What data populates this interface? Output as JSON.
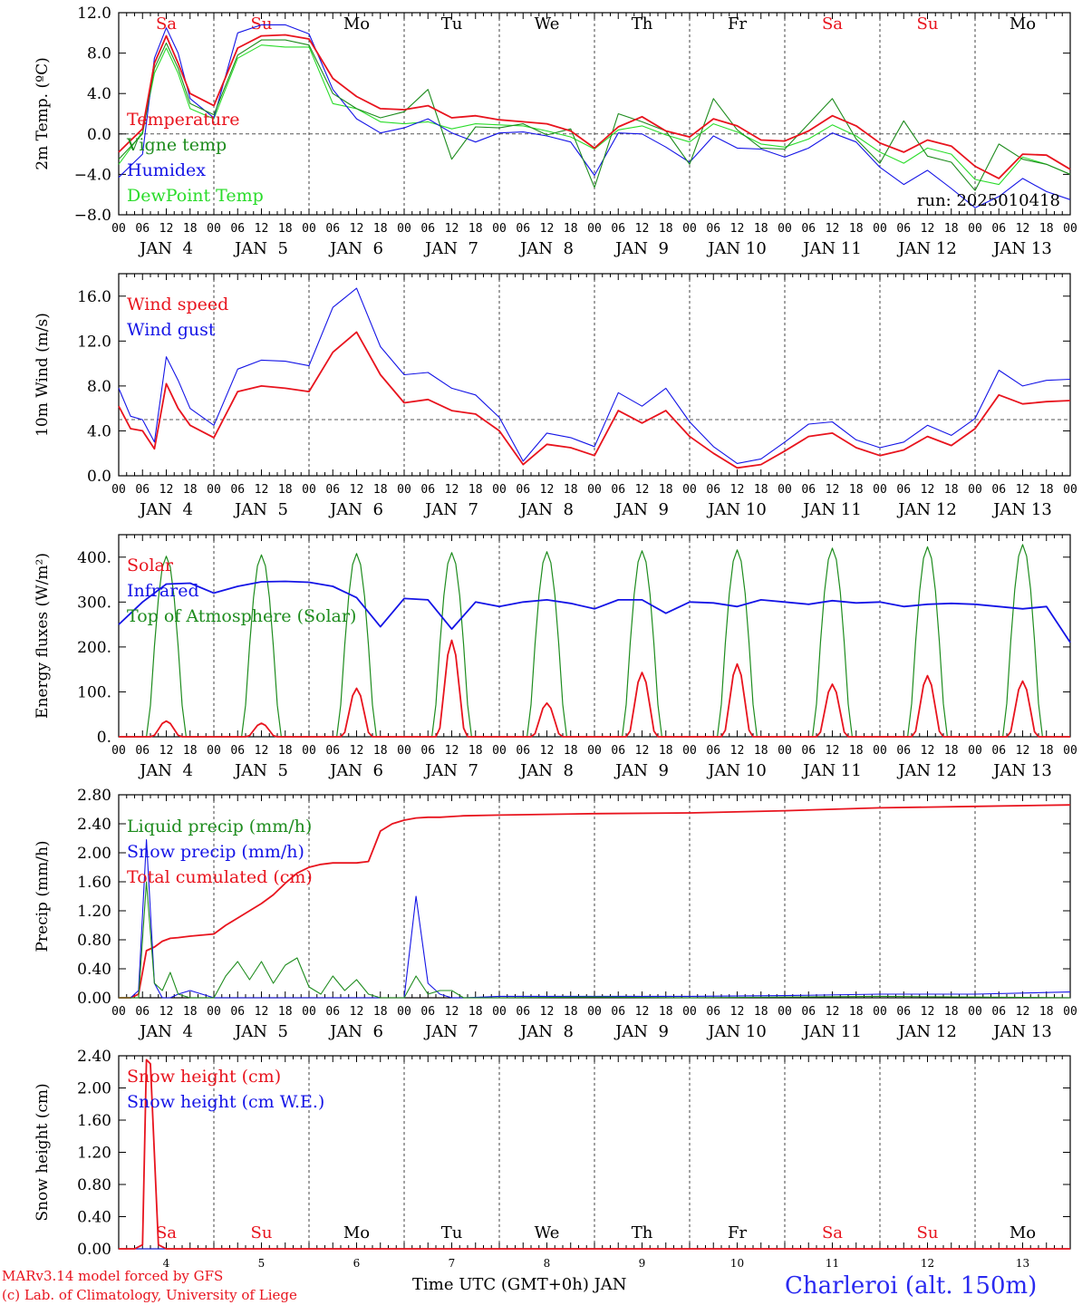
{
  "colors": {
    "red": "#e8141e",
    "green": "#1e8c1e",
    "blue": "#1414e6",
    "lightgreen": "#2adc2a",
    "black": "#000000",
    "location": "#2a2af0"
  },
  "footer": {
    "credit_line1": "MARv3.14 model forced by GFS",
    "credit_line2": "(c) Lab. of Climatology, University of Liege",
    "xlabel": "Time UTC (GMT+0h) JAN",
    "location": "Charleroi (alt. 150m)"
  },
  "time_axis": {
    "hour_ticks": [
      "00",
      "06",
      "12",
      "18"
    ],
    "day_labels": [
      "JAN  4",
      "JAN  5",
      "JAN  6",
      "JAN  7",
      "JAN  8",
      "JAN  9",
      "JAN 10",
      "JAN 11",
      "JAN 12",
      "JAN 13"
    ],
    "weekday_labels": [
      "Sa",
      "Su",
      "Mo",
      "Tu",
      "We",
      "Th",
      "Fr",
      "Sa",
      "Su",
      "Mo"
    ],
    "weekend_flags": [
      true,
      true,
      false,
      false,
      false,
      false,
      false,
      true,
      true,
      false
    ],
    "bottom_day_numbers": [
      "4",
      "5",
      "6",
      "7",
      "8",
      "9",
      "10",
      "11",
      "12",
      "13"
    ],
    "start_hour": 0,
    "end_hour": 240,
    "day_separator_hour": 24
  },
  "chart_data": [
    {
      "type": "line",
      "title": "",
      "ylabel": "2m Temp. (ºC)",
      "ylim": [
        -8,
        12
      ],
      "yticks": [
        "12.0",
        "8.0",
        "4.0",
        "0.0",
        "−4.0",
        "−8.0"
      ],
      "ytick_values": [
        12,
        8,
        4,
        0,
        -4,
        -8
      ],
      "reference_line": 0,
      "show_weekday_top": true,
      "annotation": "run: 2025010418",
      "x_hours": [
        0,
        6,
        9,
        12,
        15,
        18,
        24,
        30,
        36,
        42,
        48,
        54,
        60,
        66,
        72,
        78,
        84,
        90,
        96,
        102,
        108,
        114,
        120,
        126,
        132,
        138,
        144,
        150,
        156,
        162,
        168,
        174,
        180,
        186,
        192,
        198,
        204,
        210,
        216,
        222,
        228,
        234,
        240
      ],
      "series": [
        {
          "name": "Temperature",
          "color_key": "red",
          "values": [
            -1.8,
            0.5,
            7.0,
            9.7,
            7.0,
            4.0,
            2.8,
            8.5,
            9.7,
            9.8,
            9.4,
            5.5,
            3.7,
            2.5,
            2.4,
            2.8,
            1.6,
            1.8,
            1.4,
            1.2,
            1.0,
            0.3,
            -1.4,
            0.7,
            1.7,
            0.3,
            -0.3,
            1.5,
            0.8,
            -0.6,
            -0.7,
            0.3,
            1.8,
            0.8,
            -0.9,
            -1.8,
            -0.6,
            -1.2,
            -3.2,
            -4.4,
            -2.0,
            -2.1,
            -3.5
          ]
        },
        {
          "name": "Vigne temp",
          "color_key": "green",
          "values": [
            -2.5,
            0.0,
            6.5,
            9.0,
            6.5,
            3.0,
            1.9,
            7.8,
            9.3,
            9.3,
            8.8,
            4.0,
            2.5,
            1.6,
            2.2,
            4.4,
            -2.5,
            0.7,
            0.6,
            1.0,
            -0.1,
            0.5,
            -5.3,
            2.0,
            1.2,
            0.3,
            -3.0,
            3.5,
            0.4,
            -1.4,
            -1.5,
            1.0,
            3.5,
            -0.5,
            -2.9,
            1.3,
            -2.2,
            -2.8,
            -5.6,
            -1.0,
            -2.5,
            -3.0,
            -4.0
          ]
        },
        {
          "name": "Humidex",
          "color_key": "blue",
          "values": [
            -4.3,
            -2.0,
            7.5,
            10.5,
            8.0,
            3.5,
            1.6,
            10.0,
            10.8,
            10.8,
            9.9,
            4.4,
            1.5,
            0.1,
            0.6,
            1.5,
            0.1,
            -0.8,
            0.1,
            0.2,
            -0.2,
            -0.8,
            -4.1,
            0.1,
            0.0,
            -1.3,
            -2.8,
            -0.2,
            -1.4,
            -1.5,
            -2.3,
            -1.4,
            0.1,
            -0.8,
            -3.3,
            -5.0,
            -3.6,
            -5.4,
            -7.3,
            -6.2,
            -4.4,
            -5.7,
            -6.5
          ]
        },
        {
          "name": "DewPoint Temp",
          "color_key": "lightgreen",
          "values": [
            -3.0,
            0.2,
            6.0,
            8.5,
            6.0,
            2.5,
            1.5,
            7.5,
            8.8,
            8.6,
            8.6,
            3.0,
            2.5,
            1.2,
            1.0,
            1.2,
            0.5,
            1.0,
            0.9,
            0.8,
            0.3,
            -0.3,
            -1.5,
            0.4,
            0.8,
            -0.1,
            -0.8,
            1.0,
            0.2,
            -1.0,
            -1.3,
            -0.5,
            0.9,
            -0.2,
            -1.8,
            -2.9,
            -1.4,
            -2.0,
            -4.5,
            -5.0,
            -2.3,
            -3.0,
            -4.0
          ]
        }
      ]
    },
    {
      "type": "line",
      "title": "",
      "ylabel": "10m Wind (m/s)",
      "ylim": [
        0,
        18
      ],
      "yticks": [
        "16.0",
        "12.0",
        "8.0",
        "4.0",
        "0.0"
      ],
      "ytick_values": [
        16,
        12,
        8,
        4,
        0
      ],
      "reference_line": 5,
      "x_hours": [
        0,
        3,
        6,
        9,
        12,
        15,
        18,
        24,
        30,
        36,
        42,
        48,
        54,
        60,
        66,
        72,
        78,
        84,
        90,
        96,
        102,
        108,
        114,
        120,
        126,
        132,
        138,
        144,
        150,
        156,
        162,
        168,
        174,
        180,
        186,
        192,
        198,
        204,
        210,
        216,
        222,
        228,
        234,
        240
      ],
      "series": [
        {
          "name": "Wind speed",
          "color_key": "red",
          "values": [
            6.2,
            4.2,
            4.0,
            2.4,
            8.2,
            6.0,
            4.5,
            3.4,
            7.5,
            8.0,
            7.8,
            7.5,
            11.0,
            12.8,
            9.0,
            6.5,
            6.8,
            5.8,
            5.5,
            4.0,
            1.0,
            2.8,
            2.5,
            1.8,
            5.8,
            4.7,
            5.8,
            3.5,
            2.0,
            0.7,
            1.0,
            2.2,
            3.5,
            3.8,
            2.5,
            1.8,
            2.3,
            3.5,
            2.7,
            4.2,
            7.2,
            6.4,
            6.6,
            6.7
          ]
        },
        {
          "name": "Wind gust",
          "color_key": "blue",
          "values": [
            7.8,
            5.3,
            5.0,
            3.0,
            10.6,
            8.5,
            6.0,
            4.5,
            9.5,
            10.3,
            10.2,
            9.8,
            15.0,
            16.7,
            11.5,
            9.0,
            9.2,
            7.8,
            7.2,
            5.2,
            1.3,
            3.8,
            3.4,
            2.6,
            7.4,
            6.2,
            7.8,
            4.8,
            2.6,
            1.1,
            1.5,
            3.0,
            4.6,
            4.8,
            3.2,
            2.5,
            3.0,
            4.5,
            3.6,
            5.1,
            9.4,
            8.0,
            8.5,
            8.6
          ]
        }
      ]
    },
    {
      "type": "line",
      "title": "",
      "ylabel": "Energy fluxes (W/m²)",
      "ylim": [
        0,
        450
      ],
      "yticks": [
        "400.",
        "300.",
        "200.",
        "100.",
        "0."
      ],
      "ytick_values": [
        400,
        300,
        200,
        100,
        0
      ],
      "solar_noon_peaks": {
        "solar": [
          35,
          30,
          108,
          215,
          75,
          143,
          162,
          117,
          136,
          124
        ],
        "toa": [
          402,
          405,
          408,
          410,
          412,
          414,
          416,
          420,
          423,
          428
        ]
      },
      "x_hours": [
        0,
        6,
        12,
        18,
        24,
        30,
        36,
        42,
        48,
        54,
        60,
        66,
        72,
        78,
        84,
        90,
        96,
        102,
        108,
        114,
        120,
        126,
        132,
        138,
        144,
        150,
        156,
        162,
        168,
        174,
        180,
        186,
        192,
        198,
        204,
        210,
        216,
        222,
        228,
        234,
        240
      ],
      "series": [
        {
          "name": "Solar",
          "color_key": "red",
          "values": []
        },
        {
          "name": "Infrared",
          "color_key": "blue",
          "values": [
            250,
            300,
            340,
            342,
            320,
            335,
            345,
            346,
            344,
            335,
            310,
            245,
            308,
            305,
            240,
            300,
            290,
            300,
            305,
            297,
            285,
            305,
            305,
            275,
            300,
            298,
            290,
            305,
            300,
            295,
            303,
            298,
            300,
            290,
            295,
            297,
            295,
            290,
            285,
            290,
            210
          ]
        },
        {
          "name": "Top of Atmosphere (Solar)",
          "color_key": "green",
          "values": []
        }
      ]
    },
    {
      "type": "line",
      "title": "",
      "ylabel": "Precip (mm/h)",
      "ylim": [
        0,
        2.8
      ],
      "yticks": [
        "2.80",
        "2.40",
        "2.00",
        "1.60",
        "1.20",
        "0.80",
        "0.40",
        "0.00"
      ],
      "ytick_values": [
        2.8,
        2.4,
        2.0,
        1.6,
        1.2,
        0.8,
        0.4,
        0.0
      ],
      "x_hours": [
        0,
        3,
        5,
        7,
        9,
        11,
        13,
        15,
        18,
        24,
        27,
        30,
        33,
        36,
        39,
        42,
        45,
        48,
        51,
        54,
        57,
        60,
        63,
        66,
        69,
        72,
        75,
        78,
        81,
        84,
        87,
        96,
        120,
        144,
        168,
        192,
        216,
        240
      ],
      "series": [
        {
          "name": "Liquid precip (mm/h)",
          "color_key": "green",
          "values": [
            0.0,
            0.0,
            0.0,
            1.6,
            0.2,
            0.1,
            0.35,
            0.05,
            0.0,
            0.0,
            0.3,
            0.5,
            0.25,
            0.5,
            0.2,
            0.45,
            0.55,
            0.15,
            0.05,
            0.3,
            0.1,
            0.25,
            0.05,
            0.0,
            0.0,
            0.0,
            0.3,
            0.05,
            0.1,
            0.1,
            0.0,
            0.0,
            0.01,
            0.0,
            0.01,
            0.02,
            0.01,
            0.0
          ]
        },
        {
          "name": "Snow precip (mm/h)",
          "color_key": "blue",
          "values": [
            0.0,
            0.0,
            0.1,
            2.18,
            0.2,
            0.0,
            0.0,
            0.05,
            0.1,
            0.0,
            0.0,
            0.0,
            0.0,
            0.0,
            0.0,
            0.0,
            0.0,
            0.0,
            0.0,
            0.0,
            0.0,
            0.0,
            0.0,
            0.0,
            0.0,
            0.0,
            1.4,
            0.2,
            0.05,
            0.0,
            0.0,
            0.02,
            0.02,
            0.02,
            0.03,
            0.05,
            0.05,
            0.08
          ]
        },
        {
          "name": "Total cumulated (cm)",
          "color_key": "red",
          "values": [
            0.0,
            0.0,
            0.05,
            0.65,
            0.7,
            0.78,
            0.82,
            0.83,
            0.85,
            0.88,
            1.0,
            1.1,
            1.2,
            1.3,
            1.42,
            1.58,
            1.72,
            1.8,
            1.84,
            1.86,
            1.86,
            1.86,
            1.88,
            2.3,
            2.4,
            2.45,
            2.48,
            2.49,
            2.49,
            2.5,
            2.51,
            2.52,
            2.54,
            2.55,
            2.58,
            2.62,
            2.64,
            2.66
          ]
        }
      ]
    },
    {
      "type": "line",
      "title": "",
      "ylabel": "Snow height (cm)",
      "ylim": [
        0,
        2.4
      ],
      "yticks": [
        "2.40",
        "2.00",
        "1.60",
        "1.20",
        "0.80",
        "0.40",
        "0.00"
      ],
      "ytick_values": [
        2.4,
        2.0,
        1.6,
        1.2,
        0.8,
        0.4,
        0.0
      ],
      "show_weekday_bottom": true,
      "x_hours": [
        0,
        4,
        6,
        7,
        8,
        10,
        12,
        240
      ],
      "series": [
        {
          "name": "Snow height (cm)",
          "color_key": "red",
          "values": [
            0.0,
            0.0,
            0.05,
            2.35,
            2.3,
            0.05,
            0.0,
            0.0
          ]
        },
        {
          "name": "Snow height (cm W.E.)",
          "color_key": "blue",
          "values": [
            0.0,
            0.0,
            0.0,
            0.0,
            0.0,
            0.0,
            0.0,
            0.0
          ]
        }
      ]
    }
  ]
}
